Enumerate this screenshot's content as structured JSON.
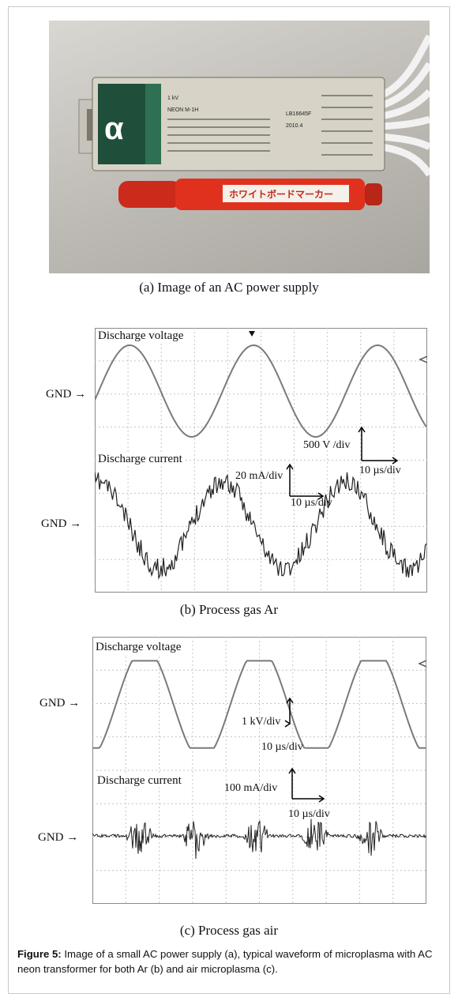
{
  "panel_a": {
    "caption": "(a) Image of an AC power supply",
    "device": {
      "logo": "α",
      "brand": "NEON M-1H",
      "rating": "1 kV",
      "serial": "LB16645F",
      "date": "2010.4"
    },
    "marker_text": "ホワイトボードマーカー"
  },
  "panel_b": {
    "caption": "(b) Process gas Ar",
    "voltage_label": "Discharge voltage",
    "current_label": "Discharge current",
    "gnd_label": "GND",
    "voltage_scale": "500 V /div",
    "voltage_time_scale": "10 µs/div",
    "current_scale": "20 mA/div",
    "current_time_scale": "10 µs/div"
  },
  "panel_c": {
    "caption": "(c) Process gas air",
    "voltage_label": "Discharge voltage",
    "current_label": "Discharge current",
    "gnd_label": "GND",
    "voltage_scale": "1 kV/div",
    "voltage_time_scale": "10 µs/div",
    "current_scale": "100 mA/div",
    "current_time_scale": "10 µs/div"
  },
  "figure_caption": {
    "label": "Figure 5:",
    "text": " Image of a small AC power supply (a), typical waveform of microplasma with AC neon transformer for both Ar (b) and air microplasma (c)."
  },
  "colors": {
    "trace": "#7a7a7a",
    "current_trace": "#222222",
    "grid": "#c4c4c4",
    "marker_red": "#e0311f"
  }
}
